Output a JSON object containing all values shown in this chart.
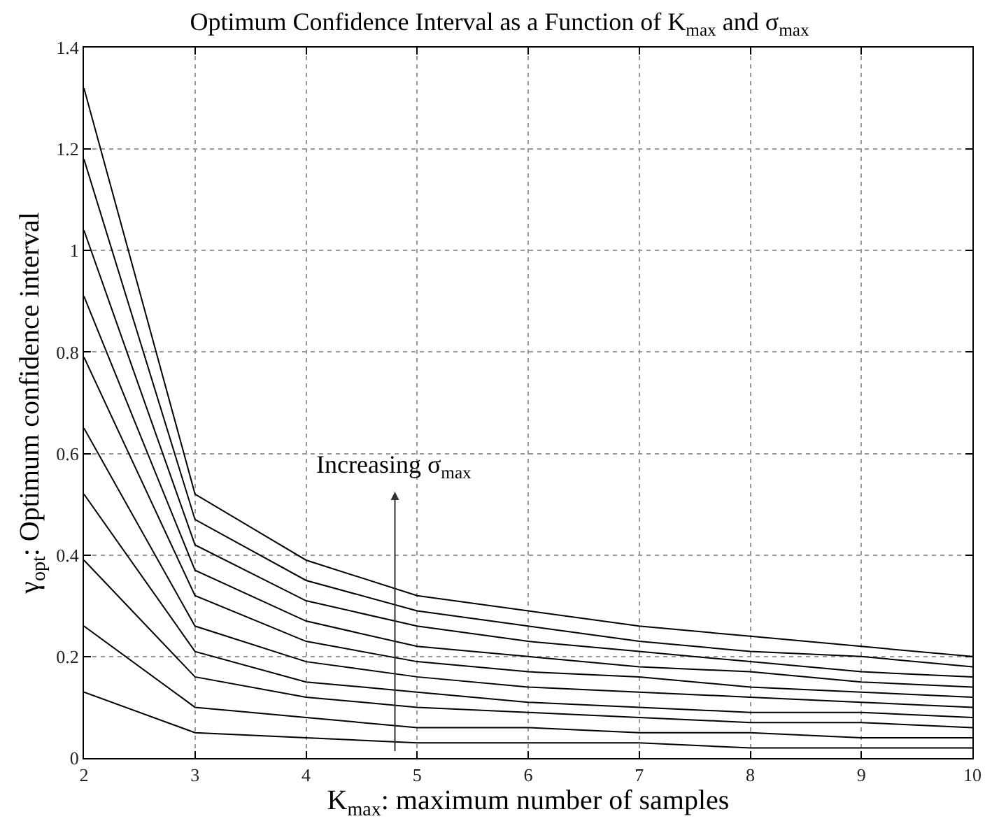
{
  "chart_data": {
    "type": "line",
    "title": "Optimum Confidence Interval as a Function of K$_{max}$ and σ$_{max}$",
    "xlabel": "K$_{max}$: maximum number of samples",
    "ylabel": "γ$_{opt}$: Optimum confidence interval",
    "x": [
      2,
      3,
      4,
      5,
      6,
      7,
      8,
      9,
      10
    ],
    "series": [
      {
        "color": "#000000",
        "values": [
          0.13,
          0.05,
          0.04,
          0.03,
          0.03,
          0.03,
          0.02,
          0.02,
          0.02
        ]
      },
      {
        "color": "#000000",
        "values": [
          0.26,
          0.1,
          0.08,
          0.06,
          0.06,
          0.05,
          0.05,
          0.04,
          0.04
        ]
      },
      {
        "color": "#000000",
        "values": [
          0.39,
          0.16,
          0.12,
          0.1,
          0.09,
          0.08,
          0.07,
          0.07,
          0.06
        ]
      },
      {
        "color": "#000000",
        "values": [
          0.52,
          0.21,
          0.15,
          0.13,
          0.11,
          0.1,
          0.09,
          0.09,
          0.08
        ]
      },
      {
        "color": "#000000",
        "values": [
          0.65,
          0.26,
          0.19,
          0.16,
          0.14,
          0.13,
          0.12,
          0.11,
          0.1
        ]
      },
      {
        "color": "#000000",
        "values": [
          0.79,
          0.32,
          0.23,
          0.19,
          0.17,
          0.16,
          0.14,
          0.13,
          0.12
        ]
      },
      {
        "color": "#000000",
        "values": [
          0.91,
          0.37,
          0.27,
          0.22,
          0.2,
          0.18,
          0.17,
          0.15,
          0.14
        ]
      },
      {
        "color": "#000000",
        "values": [
          1.04,
          0.42,
          0.31,
          0.26,
          0.23,
          0.21,
          0.19,
          0.17,
          0.16
        ]
      },
      {
        "color": "#000000",
        "values": [
          1.18,
          0.47,
          0.35,
          0.29,
          0.26,
          0.23,
          0.21,
          0.2,
          0.18
        ]
      },
      {
        "color": "#000000",
        "values": [
          1.32,
          0.52,
          0.39,
          0.32,
          0.29,
          0.26,
          0.24,
          0.22,
          0.2
        ]
      }
    ],
    "annotations": [
      "Increasing σ$_{max}$"
    ],
    "xlim": [
      2,
      10
    ],
    "xticks": [
      2,
      3,
      4,
      5,
      6,
      7,
      8,
      9,
      10
    ],
    "ylim": [
      0,
      1.4
    ],
    "yticks": [
      0,
      0.2,
      0.4,
      0.6,
      0.8,
      1,
      1.2,
      1.4
    ],
    "grid": true,
    "marker": "none",
    "line_style": "solid"
  }
}
